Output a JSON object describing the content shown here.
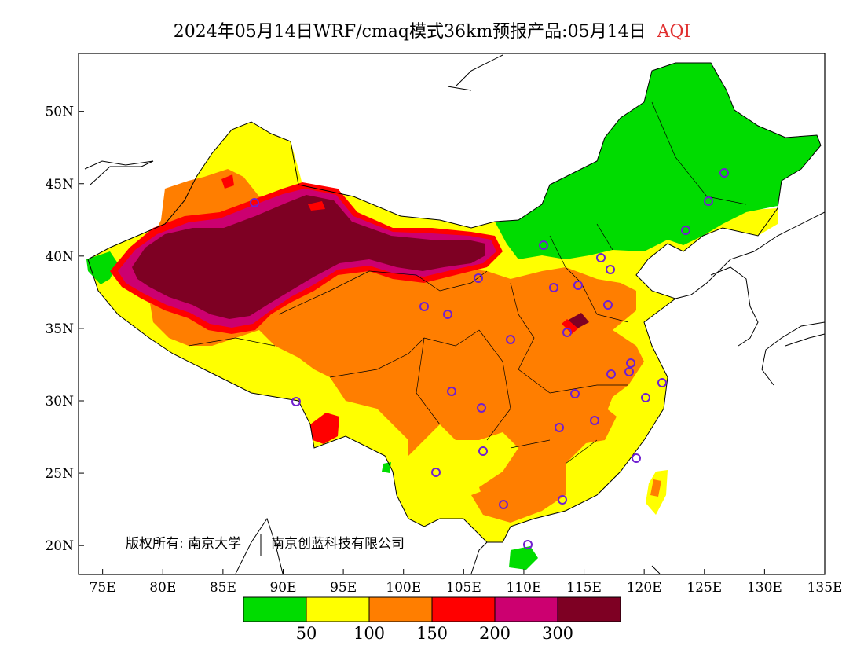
{
  "title": {
    "main": "2024年05月14日WRF/cmaq模式36km预报产品:05月14日",
    "variable": "AQI"
  },
  "map": {
    "lon_ticks": [
      "75E",
      "80E",
      "85E",
      "90E",
      "95E",
      "100E",
      "105E",
      "110E",
      "115E",
      "120E",
      "125E",
      "130E",
      "135E"
    ],
    "lat_ticks": [
      "20N",
      "25N",
      "30N",
      "35N",
      "40N",
      "45N",
      "50N"
    ],
    "copyright": "版权所有: 南京大学",
    "copyright_2": "南京创蓝科技有限公司"
  },
  "colorbar": {
    "colors": [
      "#00dc00",
      "#ffff00",
      "#ff7e00",
      "#ff0000",
      "#cc0070",
      "#7e0023"
    ],
    "labels": [
      "50",
      "100",
      "150",
      "200",
      "300"
    ]
  },
  "chart_data": {
    "type": "heatmap",
    "title": "2024年05月14日WRF/cmaq模式36km预报产品:05月14日 AQI",
    "xlim": [
      73,
      135
    ],
    "ylim": [
      18,
      54
    ],
    "categories": [
      "0-50",
      "50-100",
      "100-150",
      "150-200",
      "200-300",
      ">300"
    ],
    "thresholds": [
      50,
      100,
      150,
      200,
      300
    ]
  }
}
